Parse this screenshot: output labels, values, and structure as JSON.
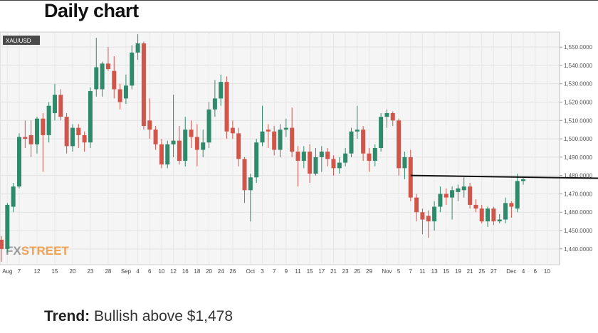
{
  "title": "Daily chart",
  "chart_data": {
    "type": "candlestick",
    "symbol": "XAU/USD",
    "watermark": [
      "FX",
      "STREET"
    ],
    "categories": [
      null,
      "Aug",
      null,
      "7",
      null,
      null,
      "12",
      null,
      null,
      "15",
      null,
      null,
      "20",
      null,
      null,
      "23",
      null,
      null,
      "28",
      null,
      null,
      "Sep",
      null,
      "4",
      null,
      "6",
      null,
      "10",
      null,
      "12",
      null,
      "16",
      null,
      "18",
      null,
      "20",
      null,
      "24",
      null,
      "26",
      null,
      null,
      "Oct",
      null,
      "3",
      null,
      "7",
      null,
      "9",
      null,
      "11",
      null,
      "15",
      null,
      "17",
      null,
      "21",
      null,
      "23",
      null,
      "25",
      null,
      "29",
      null,
      null,
      "Nov",
      null,
      "5",
      null,
      "7",
      null,
      "11",
      null,
      "13",
      null,
      "15",
      null,
      "19",
      null,
      "21",
      null,
      "25",
      null,
      "27",
      null,
      null,
      "Dec",
      null,
      "4",
      null,
      "6",
      null,
      "10"
    ],
    "open": [
      1445,
      1440,
      1463,
      1474,
      1501,
      1502,
      1497,
      1511,
      1502,
      1514,
      1524,
      1512,
      1496,
      1506,
      1502,
      1498,
      1527,
      1527,
      1541,
      1537,
      1527,
      1522,
      1529,
      1547,
      1552,
      1510,
      1505,
      1497,
      1486,
      1497,
      1499,
      1488,
      1505,
      1501,
      1494,
      1498,
      1516,
      1522,
      1531,
      1506,
      1503,
      1489,
      1472,
      1479,
      1498,
      1505,
      1504,
      1494,
      1505,
      1506,
      1493,
      1488,
      1493,
      1481,
      1490,
      1493,
      1489,
      1484,
      1487,
      1492,
      1504,
      1505,
      1492,
      1488,
      1495,
      1512,
      1514,
      1510,
      1484,
      1490,
      1468,
      1460,
      1458,
      1455,
      1463,
      1470,
      1468,
      1471,
      1472,
      1474,
      1464,
      1462,
      1455,
      1462,
      1455,
      1456,
      1465,
      1462,
      1477,
      null,
      null,
      null,
      null
    ],
    "high": [
      1447,
      1465,
      1476,
      1503,
      1510,
      1510,
      1512,
      1514,
      1520,
      1530,
      1527,
      1514,
      1508,
      1508,
      1504,
      1528,
      1555,
      1542,
      1550,
      1545,
      1530,
      1535,
      1551,
      1557,
      1553,
      1522,
      1507,
      1500,
      1499,
      1524,
      1507,
      1512,
      1510,
      1508,
      1505,
      1520,
      1532,
      1535,
      1534,
      1510,
      1506,
      1490,
      1481,
      1500,
      1518,
      1508,
      1507,
      1508,
      1511,
      1517,
      1496,
      1496,
      1497,
      1495,
      1496,
      1495,
      1491,
      1490,
      1495,
      1506,
      1518,
      1507,
      1495,
      1497,
      1514,
      1516,
      1515,
      1511,
      1493,
      1494,
      1470,
      1462,
      1461,
      1466,
      1474,
      1473,
      1474,
      1475,
      1479,
      1476,
      1467,
      1464,
      1463,
      1463,
      1459,
      1468,
      1466,
      1481,
      1479,
      null,
      null,
      null,
      null
    ],
    "low": [
      1433,
      1438,
      1460,
      1473,
      1495,
      1490,
      1492,
      1482,
      1498,
      1510,
      1510,
      1492,
      1493,
      1495,
      1493,
      1495,
      1523,
      1523,
      1537,
      1522,
      1516,
      1519,
      1527,
      1543,
      1505,
      1500,
      1494,
      1484,
      1484,
      1490,
      1486,
      1485,
      1495,
      1485,
      1490,
      1495,
      1512,
      1518,
      1500,
      1500,
      1485,
      1465,
      1455,
      1476,
      1496,
      1495,
      1491,
      1490,
      1501,
      1490,
      1474,
      1484,
      1476,
      1480,
      1482,
      1485,
      1480,
      1481,
      1485,
      1490,
      1500,
      1488,
      1482,
      1485,
      1493,
      1506,
      1507,
      1480,
      1478,
      1466,
      1455,
      1448,
      1446,
      1450,
      1460,
      1464,
      1456,
      1466,
      1468,
      1462,
      1460,
      1454,
      1452,
      1453,
      1454,
      1454,
      1457,
      1460,
      1475,
      null,
      null,
      null,
      null
    ],
    "close": [
      1440,
      1464,
      1474,
      1501,
      1500,
      1497,
      1511,
      1502,
      1518,
      1524,
      1512,
      1496,
      1506,
      1502,
      1498,
      1526,
      1539,
      1541,
      1538,
      1527,
      1520,
      1529,
      1547,
      1552,
      1507,
      1505,
      1497,
      1486,
      1497,
      1499,
      1488,
      1505,
      1501,
      1494,
      1498,
      1516,
      1522,
      1531,
      1504,
      1503,
      1489,
      1472,
      1479,
      1498,
      1504,
      1504,
      1494,
      1505,
      1506,
      1493,
      1488,
      1493,
      1481,
      1490,
      1493,
      1489,
      1484,
      1487,
      1492,
      1504,
      1505,
      1492,
      1488,
      1495,
      1512,
      1514,
      1510,
      1484,
      1490,
      1468,
      1460,
      1456,
      1455,
      1463,
      1470,
      1468,
      1472,
      1473,
      1474,
      1464,
      1462,
      1455,
      1462,
      1455,
      1456,
      1465,
      1463,
      1477,
      1478,
      null,
      null,
      null,
      null
    ],
    "up_color": "#2f8a6b",
    "down_color": "#d0564c",
    "grid": true,
    "ylim": [
      1431.4,
      1558.2
    ],
    "yticks": [
      {
        "value": 1440,
        "label": "1,440.0000"
      },
      {
        "value": 1450,
        "label": "1,450.0000"
      },
      {
        "value": 1460,
        "label": "1,460.0000"
      },
      {
        "value": 1470,
        "label": "1,470.0000"
      },
      {
        "value": 1480,
        "label": "1,480.0000"
      },
      {
        "value": 1490,
        "label": "1,490.0000"
      },
      {
        "value": 1500,
        "label": "1,500.0000"
      },
      {
        "value": 1510,
        "label": "1,510.0000"
      },
      {
        "value": 1520,
        "label": "1,520.0000"
      },
      {
        "value": 1530,
        "label": "1,530.0000"
      },
      {
        "value": 1540,
        "label": "1,540.0000"
      },
      {
        "value": 1550,
        "label": "1,550.0000"
      }
    ],
    "level_line": {
      "start": 1480,
      "end": 1478.5,
      "color": "#111111"
    }
  },
  "footer": {
    "label": "Trend:",
    "text": "Bullish above $1,478"
  }
}
